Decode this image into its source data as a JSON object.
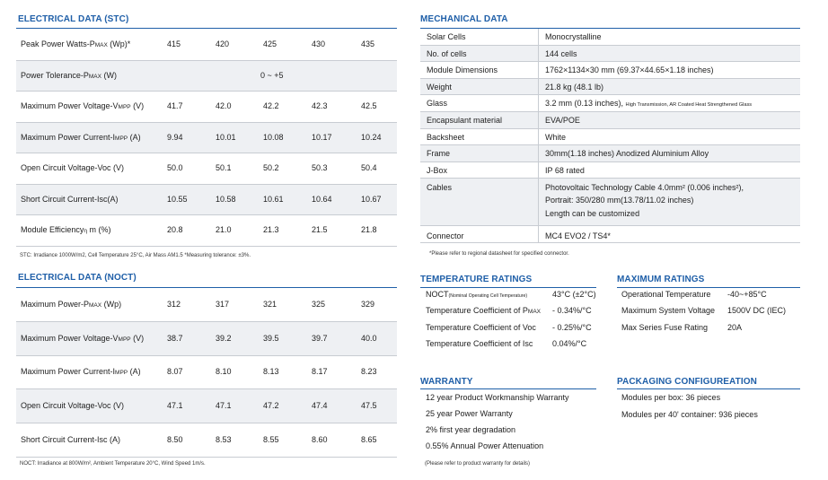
{
  "stc": {
    "title": "ELECTRICAL DATA (STC)",
    "rows": [
      {
        "label": "Peak Power Watts-P",
        "sub": "MAX",
        "unit": " (Wp)*",
        "values": [
          "415",
          "420",
          "425",
          "430",
          "435"
        ]
      },
      {
        "label": "Power Tolerance-P",
        "sub": "MAX",
        "unit": " (W)",
        "span": "0 ~ +5"
      },
      {
        "label": "Maximum Power Voltage-V",
        "sub": "MPP",
        "unit": " (V)",
        "values": [
          "41.7",
          "42.0",
          "42.2",
          "42.3",
          "42.5"
        ]
      },
      {
        "label": "Maximum Power Current-I",
        "sub": "MPP",
        "unit": " (A)",
        "values": [
          "9.94",
          "10.01",
          "10.08",
          "10.17",
          "10.24"
        ]
      },
      {
        "label": "Open Circuit Voltage-Voc (V)",
        "sub": "",
        "unit": "",
        "values": [
          "50.0",
          "50.1",
          "50.2",
          "50.3",
          "50.4"
        ]
      },
      {
        "label": "Short Circuit Current-Isc(A)",
        "sub": "",
        "unit": "",
        "values": [
          "10.55",
          "10.58",
          "10.61",
          "10.64",
          "10.67"
        ]
      },
      {
        "label": "Module Efficiency",
        "sub": "η",
        "unit": " m (%)",
        "values": [
          "20.8",
          "21.0",
          "21.3",
          "21.5",
          "21.8"
        ]
      }
    ],
    "note": "STC: Irradiance 1000W/m2, Cell Temperature 25°C, Air Mass AM1.5   *Measuring tolerance: ±3%."
  },
  "noct": {
    "title": "ELECTRICAL DATA (NOCT)",
    "rows": [
      {
        "label": "Maximum Power-P",
        "sub": "MAX",
        "unit": " (Wp)",
        "values": [
          "312",
          "317",
          "321",
          "325",
          "329"
        ]
      },
      {
        "label": "Maximum Power Voltage-V",
        "sub": "MPP",
        "unit": " (V)",
        "values": [
          "38.7",
          "39.2",
          "39.5",
          "39.7",
          "40.0"
        ]
      },
      {
        "label": "Maximum Power Current-I",
        "sub": "MPP",
        "unit": " (A)",
        "values": [
          "8.07",
          "8.10",
          "8.13",
          "8.17",
          "8.23"
        ]
      },
      {
        "label": "Open Circuit Voltage-Voc (V)",
        "sub": "",
        "unit": "",
        "values": [
          "47.1",
          "47.1",
          "47.2",
          "47.4",
          "47.5"
        ]
      },
      {
        "label": "Short Circuit Current-Isc (A)",
        "sub": "",
        "unit": "",
        "values": [
          "8.50",
          "8.53",
          "8.55",
          "8.60",
          "8.65"
        ]
      }
    ],
    "note": "NOCT: Irradiance at 800W/m², Ambient Temperature 20°C, Wind Speed 1m/s."
  },
  "mechanical": {
    "title": "MECHANICAL DATA",
    "rows": [
      {
        "k": "Solar Cells",
        "v": "Monocrystalline"
      },
      {
        "k": "No. of cells",
        "v": "144 cells"
      },
      {
        "k": "Module Dimensions",
        "v": "1762×1134×30 mm (69.37×44.65×1.18 inches)"
      },
      {
        "k": "Weight",
        "v": "21.8 kg (48.1 lb)"
      },
      {
        "k": "Glass",
        "v": "3.2 mm (0.13 inches), ",
        "v_small": "High Transmission, AR Coated Heat Strengthened Glass"
      },
      {
        "k": "Encapsulant material",
        "v": "EVA/POE"
      },
      {
        "k": "Backsheet",
        "v": "White"
      },
      {
        "k": "Frame",
        "v": "30mm(1.18 inches)  Anodized  Aluminium Alloy"
      },
      {
        "k": "J-Box",
        "v": "IP 68 rated"
      },
      {
        "k": "Cables",
        "v": "Photovoltaic Technology Cable 4.0mm² (0.006 inches²),",
        "v2": "Portrait: 350/280 mm(13.78/11.02 inches)",
        "v3": "Length can be customized"
      },
      {
        "k": "Connector",
        "v": "MC4 EVO2 / TS4*"
      }
    ],
    "note": "*Please refer to regional datasheet for specified connector."
  },
  "temperature": {
    "title": "TEMPERATURE RATINGS",
    "rows": [
      {
        "k": "NOCT",
        "k_small": "(Nominal Operating Cell Temperature)",
        "v": "43°C (±2°C)"
      },
      {
        "k": "Temperature Coefficient of P",
        "k_sub": "MAX",
        "v": "- 0.34%/°C"
      },
      {
        "k": "Temperature Coefficient of Voc",
        "v": "- 0.25%/°C"
      },
      {
        "k": "Temperature Coefficient of Isc",
        "v": "0.04%/°C"
      }
    ]
  },
  "maximum": {
    "title": "MAXIMUM RATINGS",
    "rows": [
      {
        "k": "Operational Temperature",
        "v": "-40~+85°C"
      },
      {
        "k": "Maximum System Voltage",
        "v": "1500V DC (IEC)"
      },
      {
        "k": "Max Series Fuse Rating",
        "v": "20A"
      }
    ]
  },
  "warranty": {
    "title": "WARRANTY",
    "items": [
      "12 year Product Workmanship Warranty",
      "25 year Power Warranty",
      "2% first year degradation",
      "0.55% Annual Power Attenuation"
    ],
    "note": "(Please refer to product warranty for details)"
  },
  "packaging": {
    "title": "PACKAGING CONFIGUREATION",
    "items": [
      "Modules per box: 36 pieces",
      "Modules per 40' container: 936 pieces"
    ]
  }
}
